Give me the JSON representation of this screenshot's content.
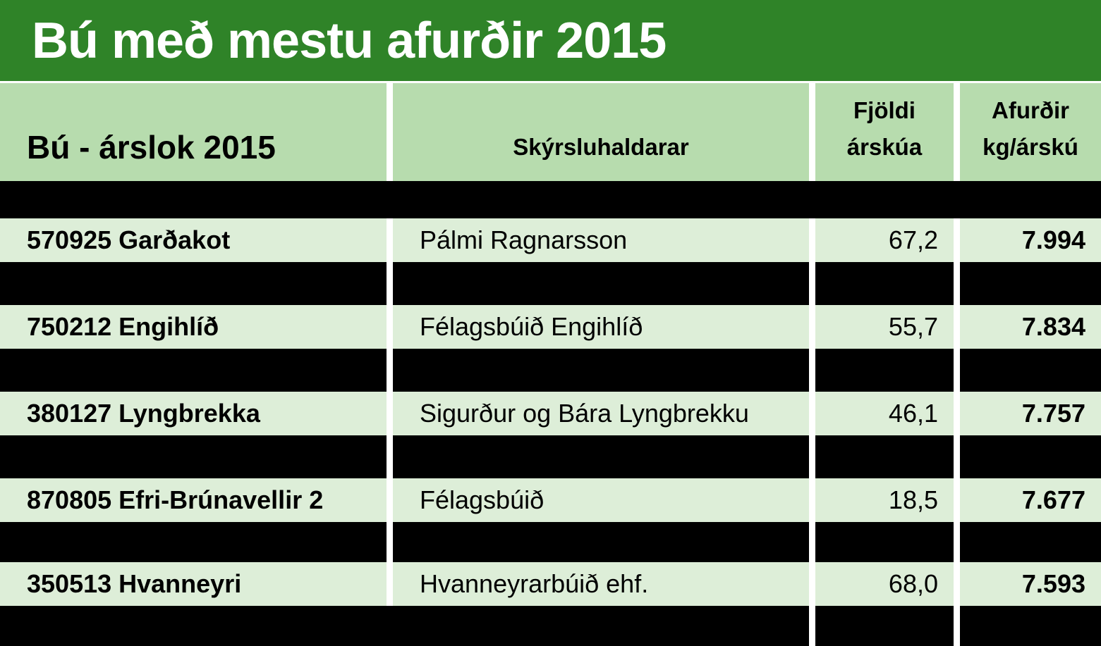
{
  "title": "Bú með mestu afurðir 2015",
  "table": {
    "columns": {
      "farm": "Bú - árslok 2015",
      "keeper": "Skýrsluhaldarar",
      "cows_line1": "Fjöldi",
      "cows_line2": "árskúa",
      "yield_line1": "Afurðir",
      "yield_line2": "kg/árskú"
    },
    "rows": [
      {
        "farm": "570925 Garðakot",
        "keeper": "Pálmi Ragnarsson",
        "cows": "67,2",
        "yield": "7.994"
      },
      {
        "farm": "750212 Engihlíð",
        "keeper": "Félagsbúið Engihlíð",
        "cows": "55,7",
        "yield": "7.834"
      },
      {
        "farm": "380127 Lyngbrekka",
        "keeper": "Sigurður og Bára Lyngbrekku",
        "cows": "46,1",
        "yield": "7.757"
      },
      {
        "farm": "870805 Efri-Brúnavellir 2",
        "keeper": "Félagsbúið",
        "cows": "18,5",
        "yield": "7.677"
      },
      {
        "farm": "350513 Hvanneyri",
        "keeper": "Hvanneyrarbúið ehf.",
        "cows": "68,0",
        "yield": "7.593"
      }
    ]
  },
  "colors": {
    "banner_green": "#2F8328",
    "header_green": "#B7DCAE",
    "row_green": "#DDEED8",
    "redacted_black": "#000000",
    "text_black": "#000000",
    "title_white": "#FFFFFF"
  }
}
